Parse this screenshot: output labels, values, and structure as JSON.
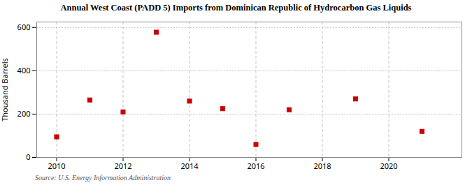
{
  "chart_data": {
    "type": "scatter",
    "title": "Annual West Coast (PADD 5) Imports from Dominican Republic of Hydrocarbon Gas Liquids",
    "ylabel": "Thousand Barrels",
    "source": "Source: U.S. Energy Information Administration",
    "x": [
      2010,
      2011,
      2012,
      2013,
      2014,
      2015,
      2016,
      2017,
      2019,
      2021
    ],
    "values": [
      95,
      265,
      210,
      578,
      260,
      225,
      60,
      220,
      270,
      120
    ],
    "color": "#cc0000",
    "marker": "square",
    "xlim": [
      2009.4,
      2022.2
    ],
    "xticks": [
      2010,
      2012,
      2014,
      2016,
      2018,
      2020
    ],
    "ylim": [
      0,
      625
    ],
    "yticks": [
      0,
      200,
      400,
      600
    ],
    "grid": true
  }
}
